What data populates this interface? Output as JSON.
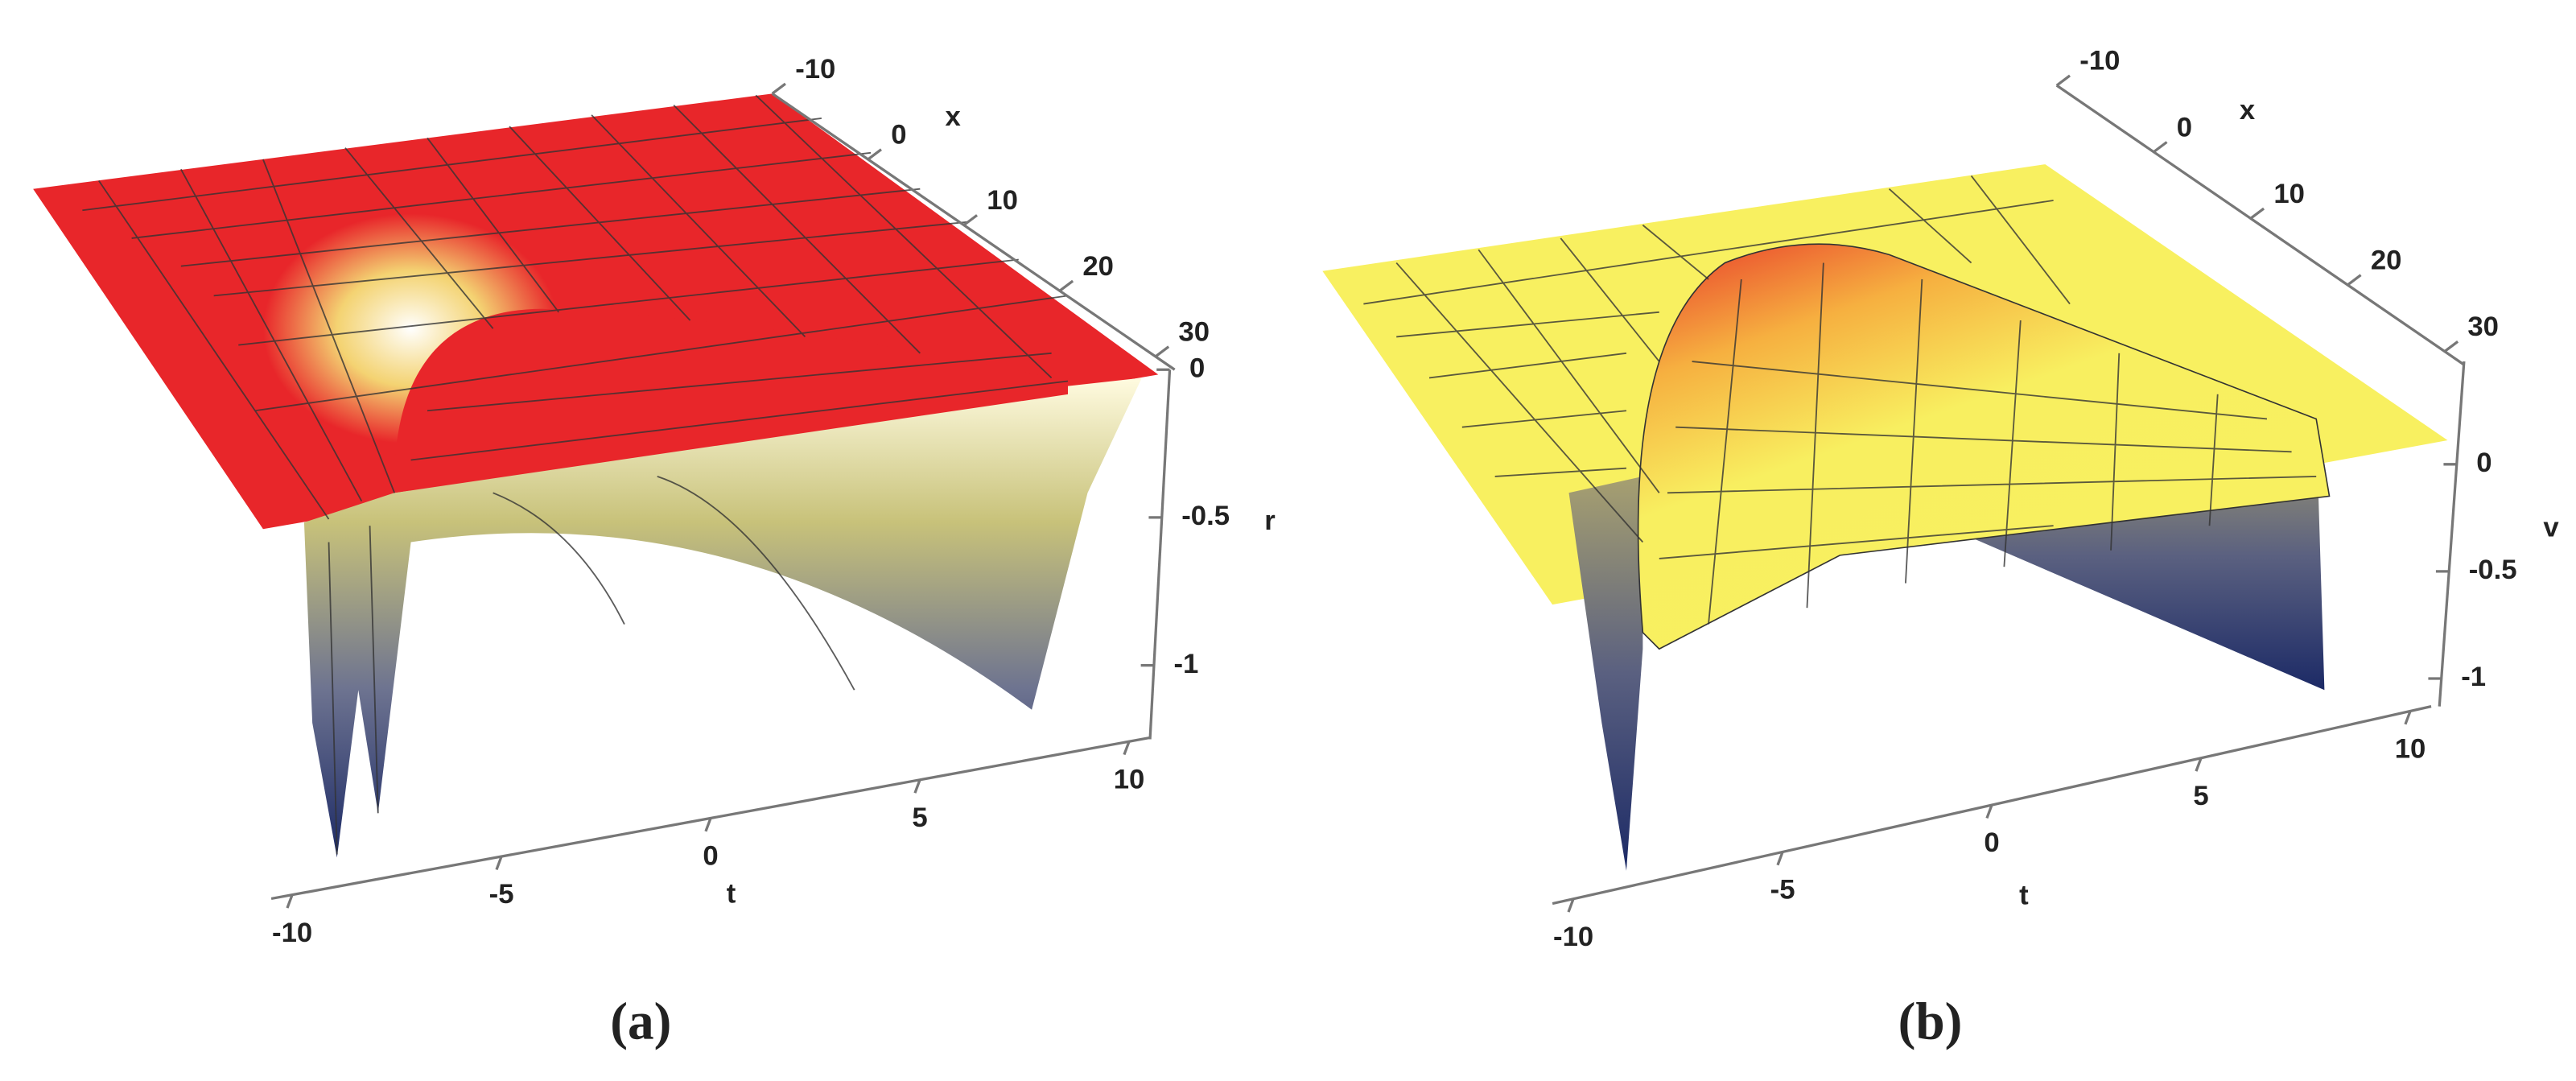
{
  "chart_data": [
    {
      "type": "surface",
      "panel_label": "(a)",
      "xlabel": "t",
      "ylabel": "x",
      "zlabel": "r",
      "xlim": [
        -10.5,
        10.5
      ],
      "xticks": [
        -10,
        -5,
        0,
        5,
        10
      ],
      "ylim": [
        -10,
        32
      ],
      "yticks": [
        -10,
        0,
        10,
        20,
        30
      ],
      "zlim": [
        -1.25,
        0
      ],
      "zticks": [
        -1,
        -0.5,
        0
      ],
      "color": "#e8262a"
    },
    {
      "type": "surface",
      "panel_label": "(b)",
      "xlabel": "t",
      "ylabel": "x",
      "zlabel": "v",
      "xlim": [
        -10.5,
        10.5
      ],
      "xticks": [
        -10,
        -5,
        0,
        5,
        10
      ],
      "ylim": [
        -10,
        32
      ],
      "yticks": [
        -10,
        0,
        10,
        20,
        30
      ],
      "zlim": [
        -1.13,
        0.48
      ],
      "zticks": [
        -1,
        -0.5,
        0
      ],
      "color": "#f8f060"
    }
  ]
}
